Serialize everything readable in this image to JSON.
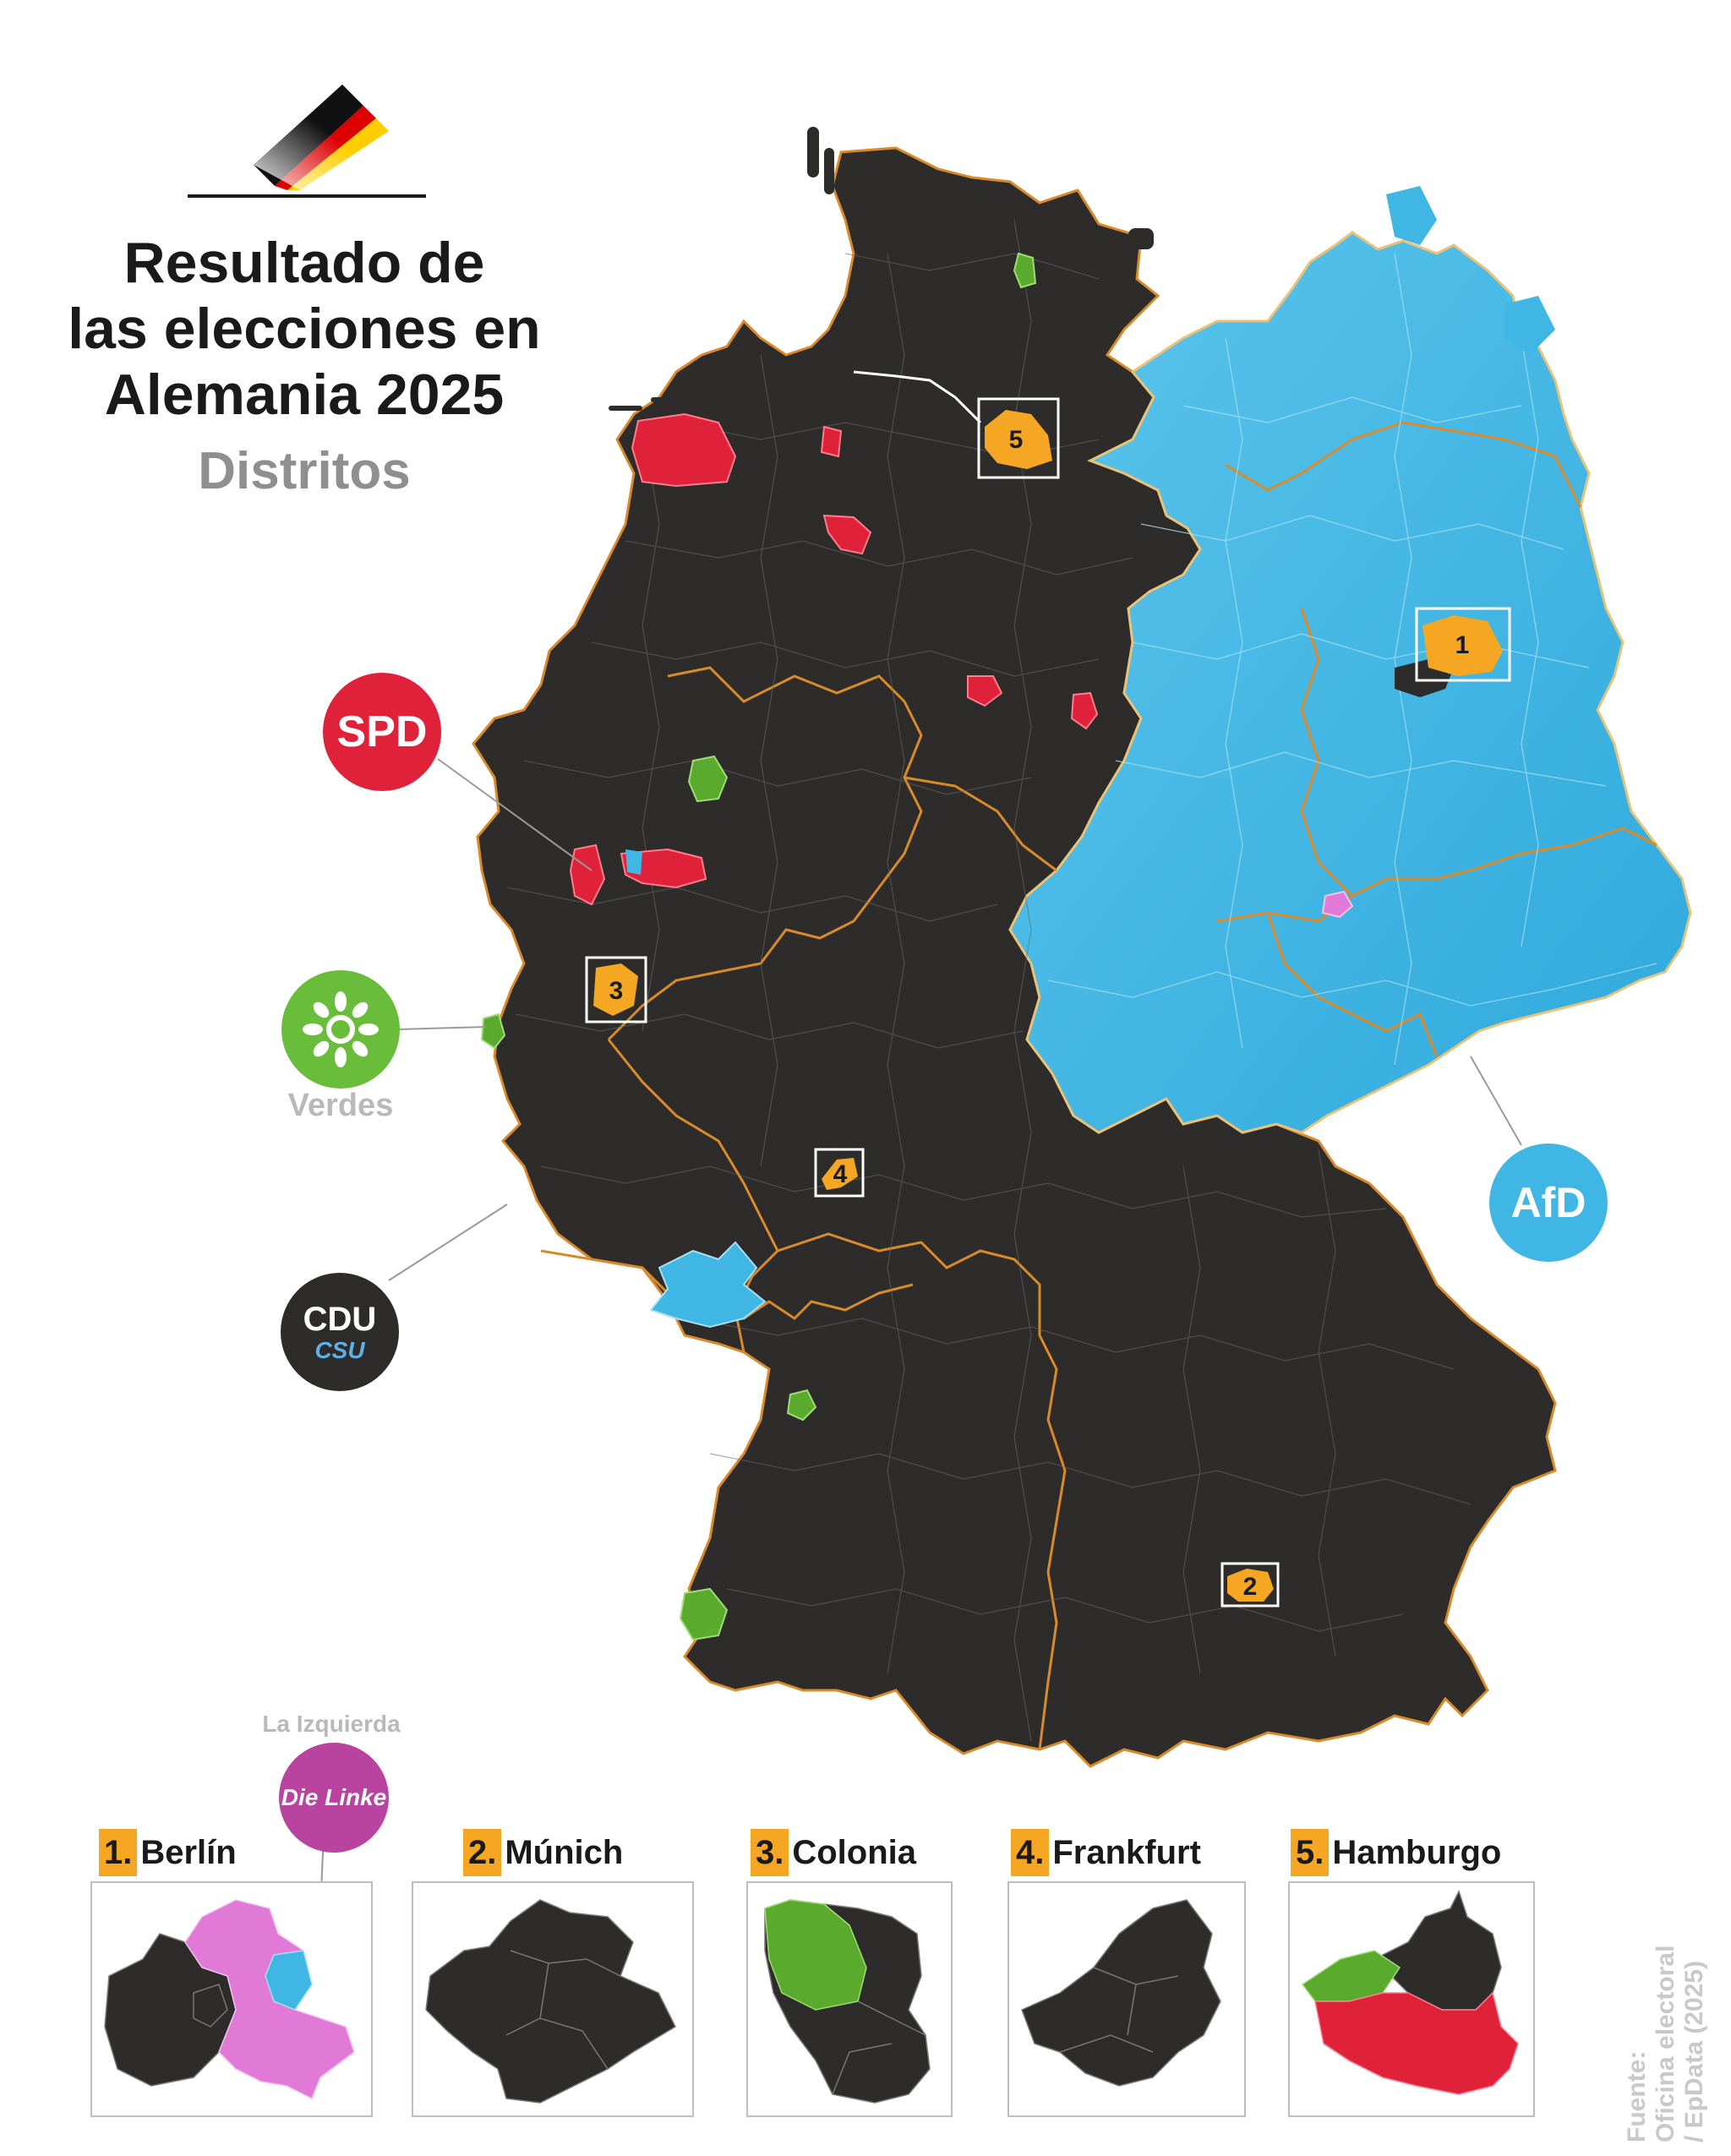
{
  "title": {
    "line1": "Resultado de",
    "line2": "las elecciones en",
    "line3": "Alemania 2025",
    "subtitle": "Distritos"
  },
  "flag_colors": [
    "#000000",
    "#dd0000",
    "#ffce00"
  ],
  "party_colors": {
    "cdu_csu": "#2d2c2a",
    "afd": "#3fb6e3",
    "spd": "#e0213a",
    "verdes": "#5aab2d",
    "die_linke": "#e07ad6",
    "highlight": "#f5a623",
    "borders": "#d98a2b"
  },
  "legend": {
    "spd": {
      "logo_text": "SPD",
      "label": ""
    },
    "verdes": {
      "logo_icon": "sunflower-icon",
      "label": "Verdes"
    },
    "cdu_csu": {
      "logo_text_1": "CDU",
      "logo_text_2": "CSU",
      "label": ""
    },
    "afd": {
      "logo_text": "AfD",
      "label": ""
    },
    "die_linke": {
      "logo_text": "Die Linke",
      "label": "La Izquierda"
    }
  },
  "map_markers": [
    "1",
    "2",
    "3",
    "4",
    "5"
  ],
  "insets": [
    {
      "num": "1.",
      "name": "Berlín"
    },
    {
      "num": "2.",
      "name": "Múnich"
    },
    {
      "num": "3.",
      "name": "Colonia"
    },
    {
      "num": "4.",
      "name": "Frankfurt"
    },
    {
      "num": "5.",
      "name": "Hamburgo"
    }
  ],
  "source": {
    "line1": "Fuente:",
    "line2": "Oficina electoral",
    "line3": "/ EpData (2025)"
  }
}
